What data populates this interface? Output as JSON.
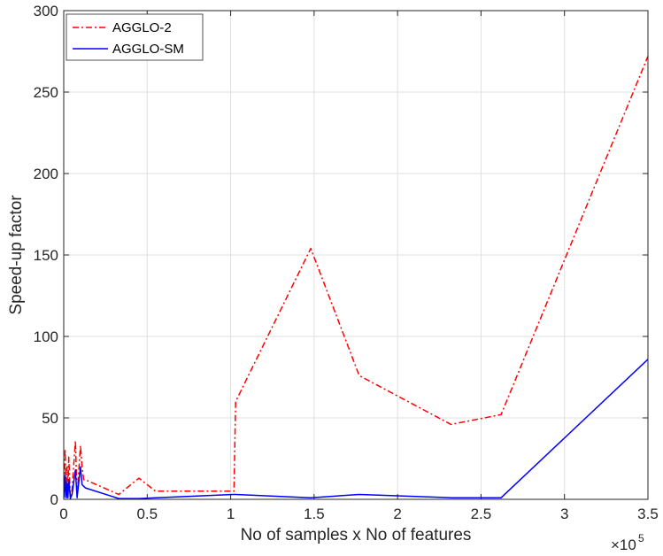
{
  "chart_data": {
    "type": "line",
    "xlabel": "No of samples x No of features",
    "ylabel": "Speed-up factor",
    "x_multiplier": {
      "base": "×10",
      "exponent": "5"
    },
    "xlim": [
      0,
      350000
    ],
    "ylim": [
      0,
      300
    ],
    "xticks": [
      0,
      50000,
      100000,
      150000,
      200000,
      250000,
      300000,
      350000
    ],
    "xtick_labels": [
      "0",
      "0.5",
      "1",
      "1.5",
      "2",
      "2.5",
      "3",
      "3.5"
    ],
    "yticks": [
      0,
      50,
      100,
      150,
      200,
      250,
      300
    ],
    "ytick_labels": [
      "0",
      "50",
      "100",
      "150",
      "200",
      "250",
      "300"
    ],
    "grid": true,
    "legend_position": "top-left",
    "series": [
      {
        "name": "AGGLO-2",
        "color": "#ff0000",
        "style": "dashdot",
        "x": [
          300,
          800,
          1500,
          2000,
          2500,
          3000,
          4000,
          5000,
          7000,
          8000,
          10000,
          11000,
          12000,
          13000,
          33000,
          45000,
          55000,
          102000,
          103000,
          148000,
          177000,
          232000,
          262000,
          350000
        ],
        "y": [
          2,
          31,
          2,
          20,
          2,
          26,
          1,
          6,
          36,
          2,
          33,
          20,
          12,
          12,
          3,
          13,
          5,
          5,
          60,
          154,
          76,
          46,
          52,
          272
        ]
      },
      {
        "name": "AGGLO-SM",
        "color": "#0000ff",
        "style": "solid",
        "x": [
          300,
          800,
          1500,
          2000,
          2500,
          3000,
          4000,
          5000,
          7000,
          8000,
          10000,
          11000,
          12000,
          13000,
          33000,
          45000,
          55000,
          102000,
          103000,
          148000,
          177000,
          232000,
          262000,
          350000
        ],
        "y": [
          1,
          15,
          1,
          10,
          1,
          12,
          0.5,
          3,
          18,
          1,
          20,
          9,
          8,
          7,
          0.5,
          0.5,
          1,
          3,
          3,
          1,
          3,
          1,
          1,
          86
        ]
      }
    ]
  }
}
